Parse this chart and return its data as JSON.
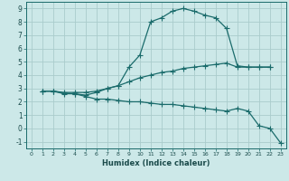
{
  "xlabel": "Humidex (Indice chaleur)",
  "bg_color": "#cce8e8",
  "grid_color": "#aacccc",
  "line_color": "#1a6b6b",
  "xlim": [
    -0.5,
    23.5
  ],
  "ylim": [
    -1.5,
    9.5
  ],
  "xticks": [
    0,
    1,
    2,
    3,
    4,
    5,
    6,
    7,
    8,
    9,
    10,
    11,
    12,
    13,
    14,
    15,
    16,
    17,
    18,
    19,
    20,
    21,
    22,
    23
  ],
  "yticks": [
    -1,
    0,
    1,
    2,
    3,
    4,
    5,
    6,
    7,
    8,
    9
  ],
  "line1_x": [
    1,
    2,
    3,
    4,
    5,
    6,
    7,
    8,
    9,
    10,
    11,
    12,
    13,
    14,
    15,
    16,
    17,
    18,
    19,
    20,
    21,
    22
  ],
  "line1_y": [
    2.8,
    2.8,
    2.6,
    2.6,
    2.5,
    2.7,
    3.0,
    3.2,
    4.6,
    5.5,
    8.0,
    8.3,
    8.8,
    9.0,
    8.8,
    8.5,
    8.3,
    7.5,
    4.7,
    4.6,
    4.6,
    4.6
  ],
  "line2_x": [
    1,
    2,
    3,
    4,
    5,
    6,
    7,
    8,
    9,
    10,
    11,
    12,
    13,
    14,
    15,
    16,
    17,
    18,
    19,
    20,
    21,
    22
  ],
  "line2_y": [
    2.8,
    2.8,
    2.7,
    2.7,
    2.7,
    2.8,
    3.0,
    3.2,
    3.5,
    3.8,
    4.0,
    4.2,
    4.3,
    4.5,
    4.6,
    4.7,
    4.8,
    4.9,
    4.6,
    4.6,
    4.6,
    4.6
  ],
  "line3_x": [
    1,
    2,
    3,
    4,
    5,
    6,
    7,
    8,
    9,
    10,
    11,
    12,
    13,
    14,
    15,
    16,
    17,
    18,
    19,
    20,
    21,
    22,
    23
  ],
  "line3_y": [
    2.8,
    2.8,
    2.65,
    2.6,
    2.4,
    2.2,
    2.2,
    2.1,
    2.0,
    2.0,
    1.9,
    1.8,
    1.8,
    1.7,
    1.6,
    1.5,
    1.4,
    1.3,
    1.5,
    1.3,
    0.2,
    0.0,
    -1.1
  ]
}
